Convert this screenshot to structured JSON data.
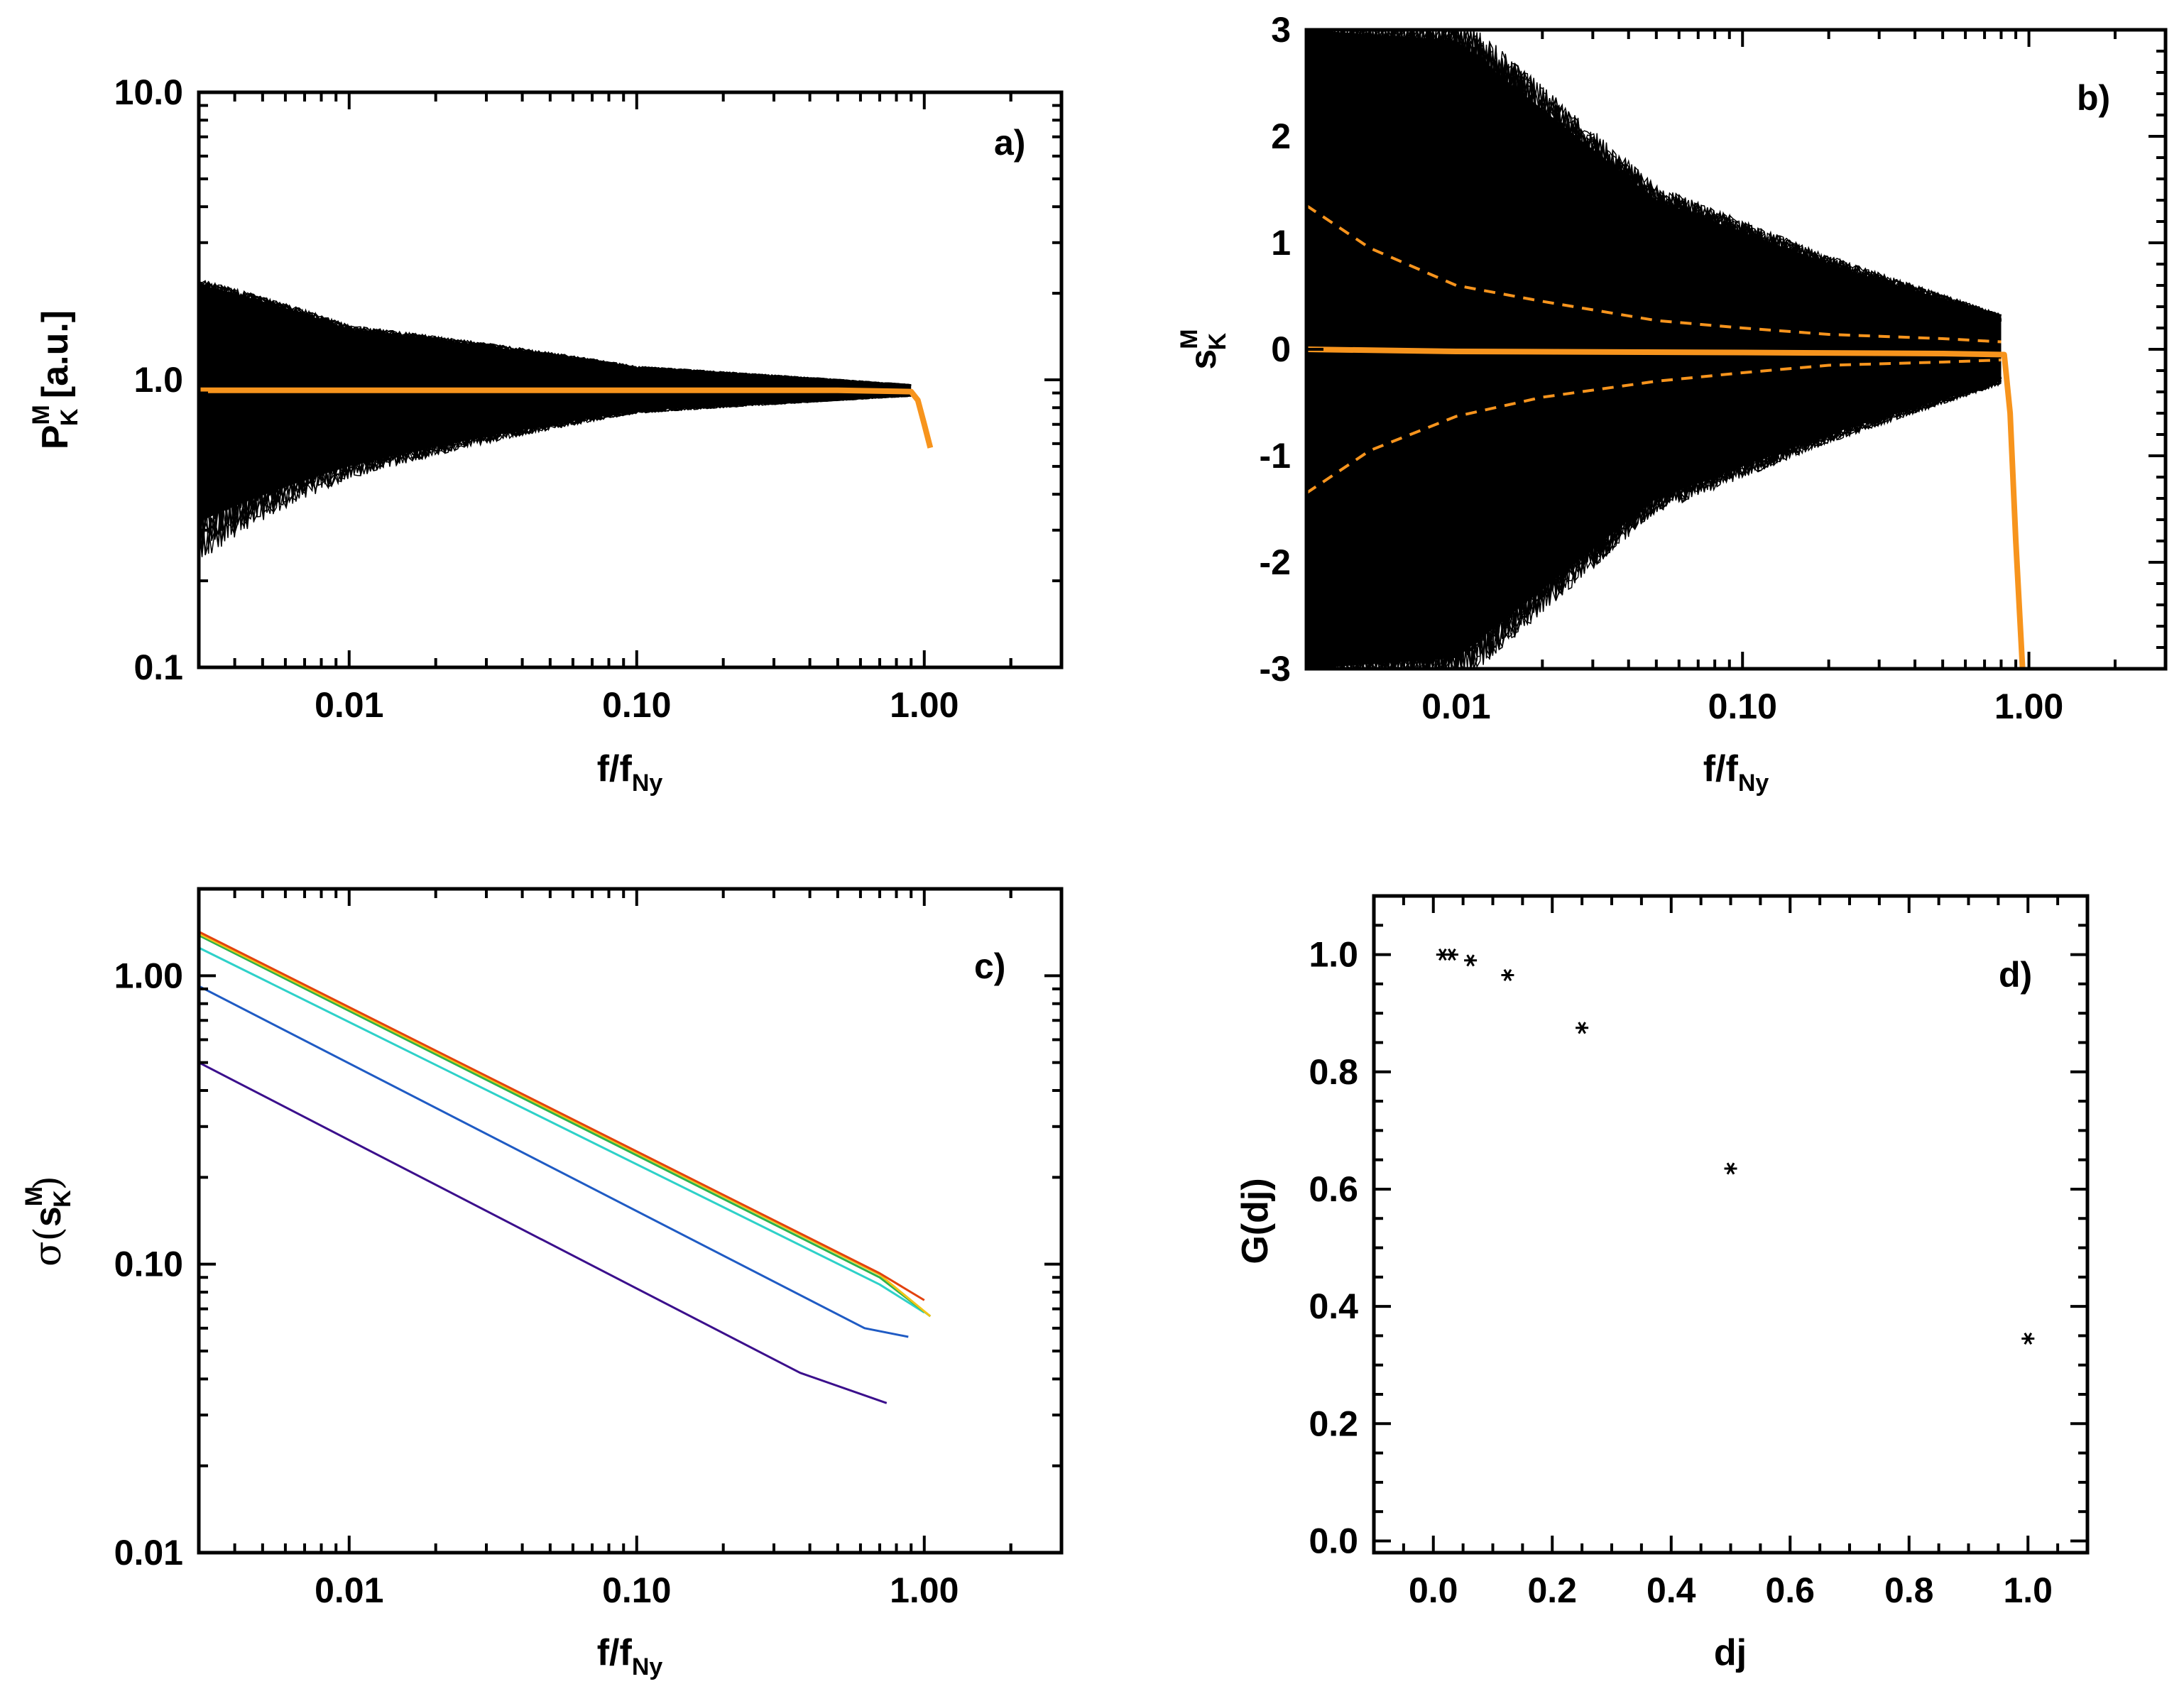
{
  "figure": {
    "panels": [
      "a)",
      "b)",
      "c)",
      "d)"
    ]
  },
  "chart_data": [
    {
      "id": "a",
      "type": "line",
      "panel_label": "a)",
      "xscale": "log",
      "yscale": "log",
      "xlim": [
        0.003,
        3.0
      ],
      "ylim": [
        0.1,
        10.0
      ],
      "xticks": [
        {
          "value": 0.01,
          "label": "0.01"
        },
        {
          "value": 0.1,
          "label": "0.10"
        },
        {
          "value": 1.0,
          "label": "1.00"
        }
      ],
      "yticks": [
        {
          "value": 0.1,
          "label": "0.1"
        },
        {
          "value": 1.0,
          "label": "1.0"
        },
        {
          "value": 10.0,
          "label": "10.0"
        }
      ],
      "xlabel": {
        "main": "f/f",
        "sub": "Ny"
      },
      "ylabel": {
        "main": "P",
        "sup": "M",
        "sub": "K",
        "suffix": " [a.u.]"
      },
      "ensemble": {
        "color": "#000000",
        "description_points": [
          {
            "x": 0.003,
            "low": 0.32,
            "high": 2.15
          },
          {
            "x": 0.01,
            "low": 0.5,
            "high": 1.5
          },
          {
            "x": 0.1,
            "low": 0.78,
            "high": 1.1
          },
          {
            "x": 0.9,
            "low": 0.88,
            "high": 0.96
          }
        ]
      },
      "series": [
        {
          "name": "mean",
          "color": "#F7941D",
          "x": [
            0.003,
            0.01,
            0.1,
            0.5,
            0.9,
            0.95,
            1.0,
            1.05
          ],
          "y": [
            0.92,
            0.92,
            0.92,
            0.92,
            0.91,
            0.85,
            0.7,
            0.58
          ]
        }
      ]
    },
    {
      "id": "b",
      "type": "line",
      "panel_label": "b)",
      "xscale": "log",
      "yscale": "linear",
      "xlim": [
        0.003,
        3.0
      ],
      "ylim": [
        -3,
        3
      ],
      "xticks": [
        {
          "value": 0.01,
          "label": "0.01"
        },
        {
          "value": 0.1,
          "label": "0.10"
        },
        {
          "value": 1.0,
          "label": "1.00"
        }
      ],
      "yticks": [
        {
          "value": -3,
          "label": "-3"
        },
        {
          "value": -2,
          "label": "-2"
        },
        {
          "value": -1,
          "label": "-1"
        },
        {
          "value": 0,
          "label": "0"
        },
        {
          "value": 1,
          "label": "1"
        },
        {
          "value": 2,
          "label": "2"
        },
        {
          "value": 3,
          "label": "3"
        }
      ],
      "xlabel": {
        "main": "f/f",
        "sub": "Ny"
      },
      "ylabel": {
        "main": "s",
        "sup": "M",
        "sub": "K"
      },
      "ensemble": {
        "color": "#000000",
        "description_points": [
          {
            "x": 0.003,
            "low": -3.0,
            "high": 3.0
          },
          {
            "x": 0.01,
            "low": -2.9,
            "high": 2.9
          },
          {
            "x": 0.05,
            "low": -1.4,
            "high": 1.4
          },
          {
            "x": 0.2,
            "low": -0.8,
            "high": 0.8
          },
          {
            "x": 0.8,
            "low": -0.3,
            "high": 0.3
          }
        ]
      },
      "series": [
        {
          "name": "mean",
          "color": "#F7941D",
          "style": "solid",
          "x": [
            0.003,
            0.01,
            0.1,
            0.5,
            0.82,
            0.86,
            0.9,
            0.95
          ],
          "y": [
            0.0,
            -0.02,
            -0.03,
            -0.04,
            -0.05,
            -0.6,
            -1.8,
            -3.0
          ]
        },
        {
          "name": "upper",
          "color": "#F7941D",
          "style": "dashed",
          "x": [
            0.003,
            0.005,
            0.01,
            0.02,
            0.05,
            0.1,
            0.2,
            0.5,
            0.8
          ],
          "y": [
            1.35,
            0.95,
            0.6,
            0.45,
            0.27,
            0.2,
            0.14,
            0.1,
            0.07
          ]
        },
        {
          "name": "lower",
          "color": "#F7941D",
          "style": "dashed",
          "x": [
            0.003,
            0.005,
            0.01,
            0.02,
            0.05,
            0.1,
            0.2,
            0.5,
            0.8
          ],
          "y": [
            -1.35,
            -0.95,
            -0.63,
            -0.45,
            -0.3,
            -0.22,
            -0.15,
            -0.12,
            -0.1
          ]
        }
      ]
    },
    {
      "id": "c",
      "type": "line",
      "panel_label": "c)",
      "xscale": "log",
      "yscale": "log",
      "xlim": [
        0.003,
        3.0
      ],
      "ylim": [
        0.01,
        2.0
      ],
      "xticks": [
        {
          "value": 0.01,
          "label": "0.01"
        },
        {
          "value": 0.1,
          "label": "0.10"
        },
        {
          "value": 1.0,
          "label": "1.00"
        }
      ],
      "yticks": [
        {
          "value": 0.01,
          "label": "0.01"
        },
        {
          "value": 0.1,
          "label": "0.10"
        },
        {
          "value": 1.0,
          "label": "1.00"
        }
      ],
      "xlabel": {
        "main": "f/f",
        "sub": "Ny"
      },
      "ylabel": {
        "prefix": "σ(",
        "main": "s",
        "sup": "M",
        "sub": "K",
        "suffix": ")"
      },
      "series": [
        {
          "name": "curve-1",
          "color": "#3B0F8C",
          "x": [
            0.003,
            0.37,
            0.74
          ],
          "y": [
            0.5,
            0.042,
            0.033
          ]
        },
        {
          "name": "curve-2",
          "color": "#1F5BC4",
          "x": [
            0.003,
            0.62,
            0.88
          ],
          "y": [
            0.92,
            0.06,
            0.056
          ]
        },
        {
          "name": "curve-3",
          "color": "#2ED1C9",
          "x": [
            0.003,
            0.7,
            1.0
          ],
          "y": [
            1.25,
            0.085,
            0.068
          ]
        },
        {
          "name": "curve-4",
          "color": "#2DB34A",
          "x": [
            0.003,
            0.7,
            1.05
          ],
          "y": [
            1.38,
            0.09,
            0.066
          ]
        },
        {
          "name": "curve-5",
          "color": "#F2C318",
          "x": [
            0.003,
            0.7,
            1.05
          ],
          "y": [
            1.4,
            0.092,
            0.066
          ]
        },
        {
          "name": "curve-6",
          "color": "#E3420E",
          "x": [
            0.003,
            0.7,
            1.0
          ],
          "y": [
            1.42,
            0.093,
            0.075
          ]
        }
      ]
    },
    {
      "id": "d",
      "type": "scatter",
      "panel_label": "d)",
      "xscale": "linear",
      "yscale": "linear",
      "xlim": [
        -0.1,
        1.1
      ],
      "ylim": [
        -0.02,
        1.1
      ],
      "xticks": [
        {
          "value": 0.0,
          "label": "0.0"
        },
        {
          "value": 0.2,
          "label": "0.2"
        },
        {
          "value": 0.4,
          "label": "0.4"
        },
        {
          "value": 0.6,
          "label": "0.6"
        },
        {
          "value": 0.8,
          "label": "0.8"
        },
        {
          "value": 1.0,
          "label": "1.0"
        }
      ],
      "yticks": [
        {
          "value": 0.0,
          "label": "0.0"
        },
        {
          "value": 0.2,
          "label": "0.2"
        },
        {
          "value": 0.4,
          "label": "0.4"
        },
        {
          "value": 0.6,
          "label": "0.6"
        },
        {
          "value": 0.8,
          "label": "0.8"
        },
        {
          "value": 1.0,
          "label": "1.0"
        }
      ],
      "xlabel": {
        "main": "dj"
      },
      "ylabel": {
        "main": "G(dj)"
      },
      "series": [
        {
          "name": "G",
          "color": "#000000",
          "marker": "asterisk",
          "x": [
            0.015625,
            0.03125,
            0.0625,
            0.125,
            0.25,
            0.5,
            1.0
          ],
          "y": [
            1.0,
            1.0,
            0.99,
            0.965,
            0.875,
            0.635,
            0.345
          ]
        }
      ]
    }
  ]
}
